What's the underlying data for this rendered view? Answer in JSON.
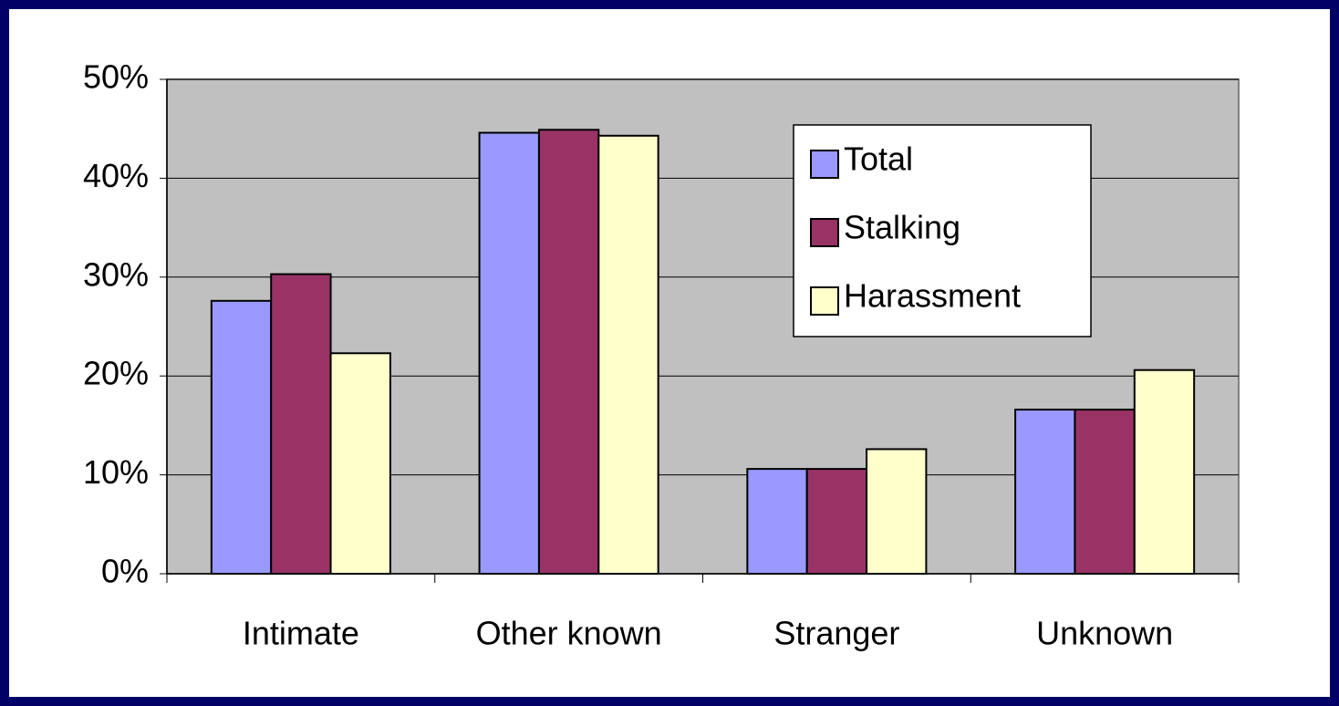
{
  "chart_data": {
    "type": "bar",
    "categories": [
      "Intimate",
      "Other known",
      "Stranger",
      "Unknown"
    ],
    "series": [
      {
        "name": "Total",
        "color": "#9999ff",
        "values": [
          27.6,
          44.6,
          10.6,
          16.6
        ]
      },
      {
        "name": "Stalking",
        "color": "#993366",
        "values": [
          30.3,
          44.9,
          10.6,
          16.6
        ]
      },
      {
        "name": "Harassment",
        "color": "#ffffcc",
        "values": [
          22.3,
          44.3,
          12.6,
          20.6
        ]
      }
    ],
    "ylim": [
      0,
      50
    ],
    "yticks": [
      {
        "value": 0,
        "label": "0%"
      },
      {
        "value": 10,
        "label": "10%"
      },
      {
        "value": 20,
        "label": "20%"
      },
      {
        "value": 30,
        "label": "30%"
      },
      {
        "value": 40,
        "label": "40%"
      },
      {
        "value": 50,
        "label": "50%"
      }
    ],
    "grid": true,
    "legend": "upper right"
  }
}
